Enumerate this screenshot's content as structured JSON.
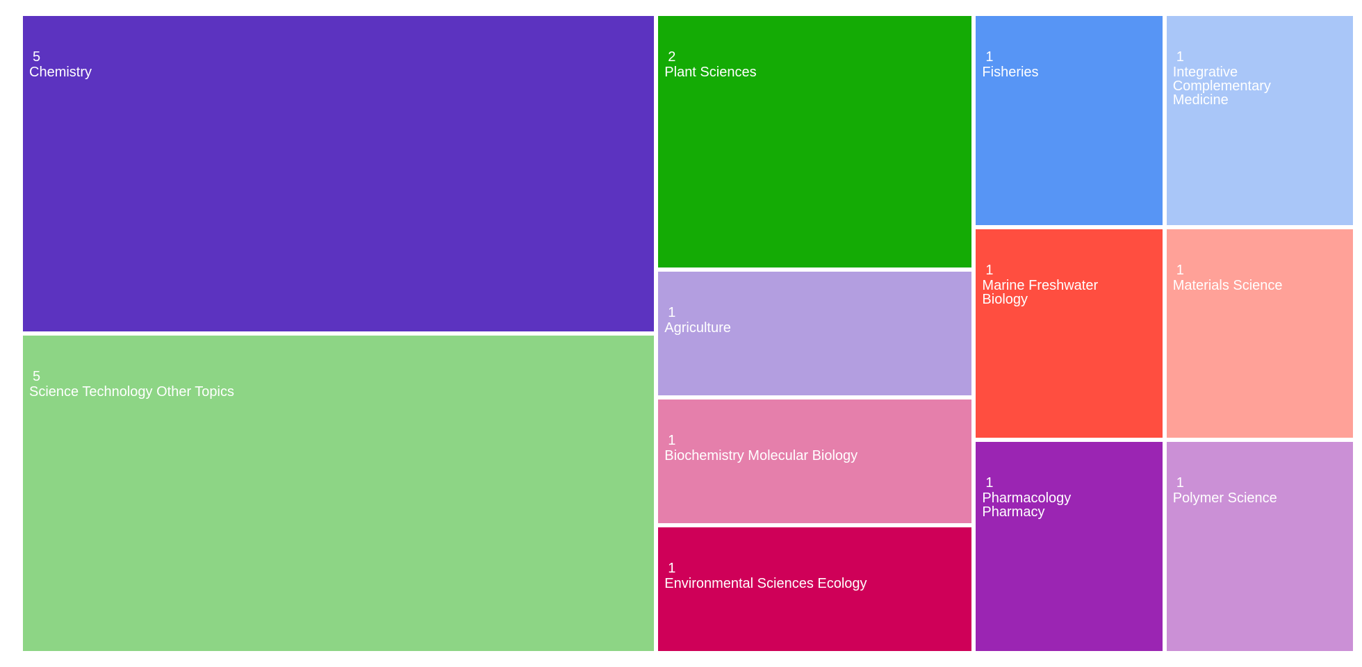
{
  "chart_data": {
    "type": "treemap",
    "categories": [
      "Chemistry",
      "Science Technology Other Topics",
      "Plant Sciences",
      "Agriculture",
      "Biochemistry Molecular Biology",
      "Environmental Sciences Ecology",
      "Fisheries",
      "Integrative Complementary Medicine",
      "Marine Freshwater Biology",
      "Materials Science",
      "Pharmacology Pharmacy",
      "Polymer Science"
    ],
    "values": [
      5,
      5,
      2,
      1,
      1,
      1,
      1,
      1,
      1,
      1,
      1,
      1
    ],
    "colors": [
      "#5c33c0",
      "#8dd585",
      "#14ab05",
      "#b39ee0",
      "#e57fab",
      "#cf0058",
      "#5795f5",
      "#a9c6f8",
      "#ff4e40",
      "#ffa198",
      "#9b25b3",
      "#cb90d6"
    ]
  }
}
